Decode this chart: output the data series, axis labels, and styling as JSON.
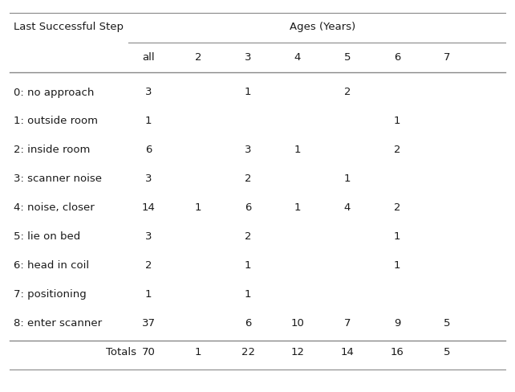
{
  "title_left": "Last Successful Step",
  "title_right": "Ages (Years)",
  "col_headers": [
    "all",
    "2",
    "3",
    "4",
    "5",
    "6",
    "7"
  ],
  "row_labels": [
    "0: no approach",
    "1: outside room",
    "2: inside room",
    "3: scanner noise",
    "4: noise, closer",
    "5: lie on bed",
    "6: head in coil",
    "7: positioning",
    "8: enter scanner"
  ],
  "table_data": [
    [
      "3",
      "",
      "1",
      "",
      "2",
      "",
      ""
    ],
    [
      "1",
      "",
      "",
      "",
      "",
      "1",
      ""
    ],
    [
      "6",
      "",
      "3",
      "1",
      "",
      "2",
      ""
    ],
    [
      "3",
      "",
      "2",
      "",
      "1",
      "",
      ""
    ],
    [
      "14",
      "1",
      "6",
      "1",
      "4",
      "2",
      ""
    ],
    [
      "3",
      "",
      "2",
      "",
      "",
      "1",
      ""
    ],
    [
      "2",
      "",
      "1",
      "",
      "",
      "1",
      ""
    ],
    [
      "1",
      "",
      "1",
      "",
      "",
      "",
      ""
    ],
    [
      "37",
      "",
      "6",
      "10",
      "7",
      "9",
      "5"
    ]
  ],
  "totals_label": "Totals",
  "totals_data": [
    "70",
    "1",
    "22",
    "12",
    "14",
    "16",
    "5"
  ],
  "bg_color": "#ffffff",
  "text_color": "#1a1a1a",
  "line_color": "#888888",
  "font_size": 9.5,
  "fig_width": 6.42,
  "fig_height": 4.89,
  "dpi": 100
}
